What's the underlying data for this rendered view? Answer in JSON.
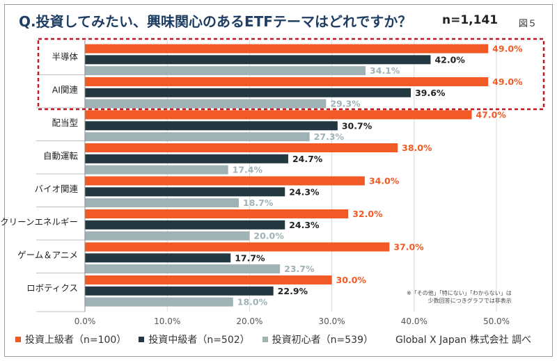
{
  "title": "Q.投資してみたい、興味関心のあるETFテーマはどれですか？",
  "sample_size": "n=1,141",
  "figure_label": "図５",
  "note_lines": [
    "※「その他」「特にない」「わからない」は",
    "少数回答につきグラフでは非表示"
  ],
  "source": "Global X Japan 株式会社 調べ",
  "colors": {
    "advanced": "#f15a24",
    "intermediate": "#243841",
    "beginner": "#9fb2b5",
    "highlight": "#c0181f",
    "grid": "#d9d9d9"
  },
  "chart_data": {
    "type": "bar",
    "orientation": "horizontal",
    "categories": [
      "半導体",
      "AI関連",
      "配当型",
      "自動運転",
      "バイオ関連",
      "クリーンエネルギー",
      "ゲーム＆アニメ",
      "ロボティクス"
    ],
    "series": [
      {
        "name": "投資上級者（n=100）",
        "values": [
          49.0,
          49.0,
          47.0,
          38.0,
          34.0,
          32.0,
          37.0,
          30.0
        ]
      },
      {
        "name": "投資中級者（n=502）",
        "values": [
          42.0,
          39.6,
          30.7,
          24.7,
          24.3,
          24.3,
          17.7,
          22.9
        ]
      },
      {
        "name": "投資初心者（n=539）",
        "values": [
          34.1,
          29.3,
          27.3,
          17.4,
          18.7,
          20.0,
          23.7,
          18.0
        ]
      }
    ],
    "xlim": [
      0,
      50
    ],
    "xticks": [
      "0.0%",
      "10.0%",
      "20.0%",
      "30.0%",
      "40.0%",
      "50.0%"
    ],
    "value_format": "percent_1dp",
    "highlighted_categories": [
      "半導体",
      "AI関連"
    ]
  }
}
